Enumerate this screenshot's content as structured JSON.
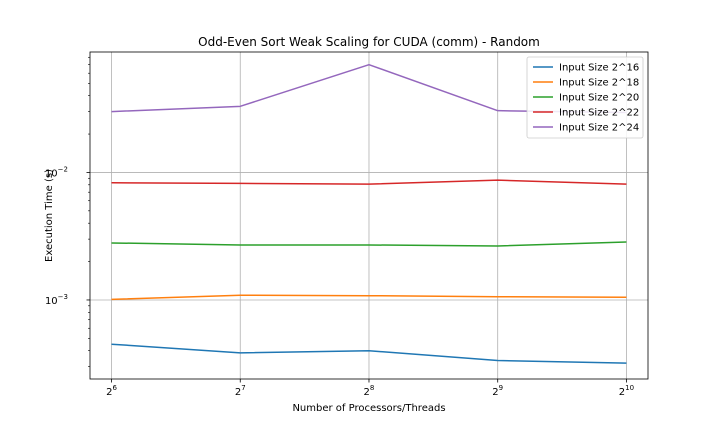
{
  "chart_data": {
    "type": "line",
    "title": "Odd-Even Sort Weak Scaling for CUDA (comm) - Random",
    "xlabel": "Number of Processors/Threads",
    "ylabel": "Execution Time (s)",
    "x_scale": "log2",
    "y_scale": "log10",
    "x": [
      64,
      128,
      256,
      512,
      1024
    ],
    "x_tick_labels": [
      {
        "base": "2",
        "exp": "6"
      },
      {
        "base": "2",
        "exp": "7"
      },
      {
        "base": "2",
        "exp": "8"
      },
      {
        "base": "2",
        "exp": "9"
      },
      {
        "base": "2",
        "exp": "10"
      }
    ],
    "y_tick_labels": [
      {
        "value": 0.001,
        "base": "10",
        "exp": "−3"
      },
      {
        "value": 0.01,
        "base": "10",
        "exp": "−2"
      }
    ],
    "xlim": [
      57,
      1150
    ],
    "ylim": [
      0.00024,
      0.088
    ],
    "grid": true,
    "legend_position": "top-right",
    "series": [
      {
        "name": "Input Size 2^16",
        "color": "#1f77b4",
        "values": [
          0.00045,
          0.000385,
          0.0004,
          0.000335,
          0.00032
        ]
      },
      {
        "name": "Input Size 2^18",
        "color": "#ff7f0e",
        "values": [
          0.00101,
          0.00109,
          0.00108,
          0.00106,
          0.00105
        ]
      },
      {
        "name": "Input Size 2^20",
        "color": "#2ca02c",
        "values": [
          0.0028,
          0.0027,
          0.0027,
          0.00265,
          0.00285
        ]
      },
      {
        "name": "Input Size 2^22",
        "color": "#d62728",
        "values": [
          0.0083,
          0.0082,
          0.0081,
          0.0087,
          0.0081
        ]
      },
      {
        "name": "Input Size 2^24",
        "color": "#9467bd",
        "values": [
          0.03,
          0.033,
          0.07,
          0.0305,
          0.0295
        ]
      }
    ]
  }
}
